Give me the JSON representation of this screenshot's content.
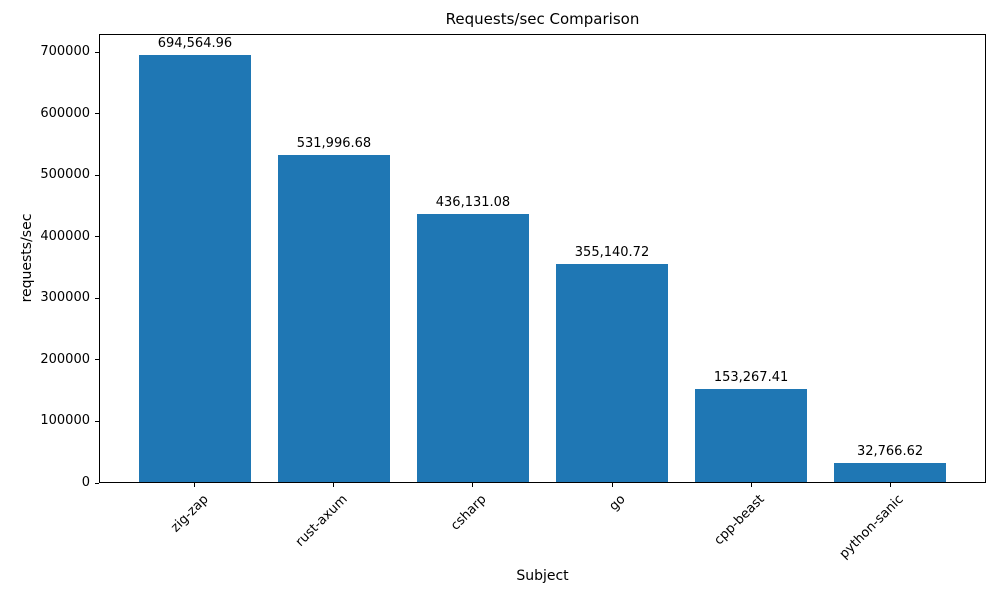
{
  "chart_data": {
    "type": "bar",
    "title": "Requests/sec Comparison",
    "xlabel": "Subject",
    "ylabel": "requests/sec",
    "categories": [
      "zig-zap",
      "rust-axum",
      "csharp",
      "go",
      "cpp-beast",
      "python-sanic"
    ],
    "values": [
      694564.96,
      531996.68,
      436131.08,
      355140.72,
      153267.41,
      32766.62
    ],
    "value_labels": [
      "694,564.96",
      "531,996.68",
      "436,131.08",
      "355,140.72",
      "153,267.41",
      "32,766.62"
    ],
    "yticks": [
      0,
      100000,
      200000,
      300000,
      400000,
      500000,
      600000,
      700000
    ],
    "ytick_labels": [
      "0",
      "100000",
      "200000",
      "300000",
      "400000",
      "500000",
      "600000",
      "700000"
    ],
    "ylim": [
      0,
      729293.21
    ],
    "x_tick_rotation": 45,
    "bar_color": "#1f77b4",
    "grid": false,
    "legend": "none",
    "background_color": "#ffffff",
    "text_color": "#000000"
  }
}
